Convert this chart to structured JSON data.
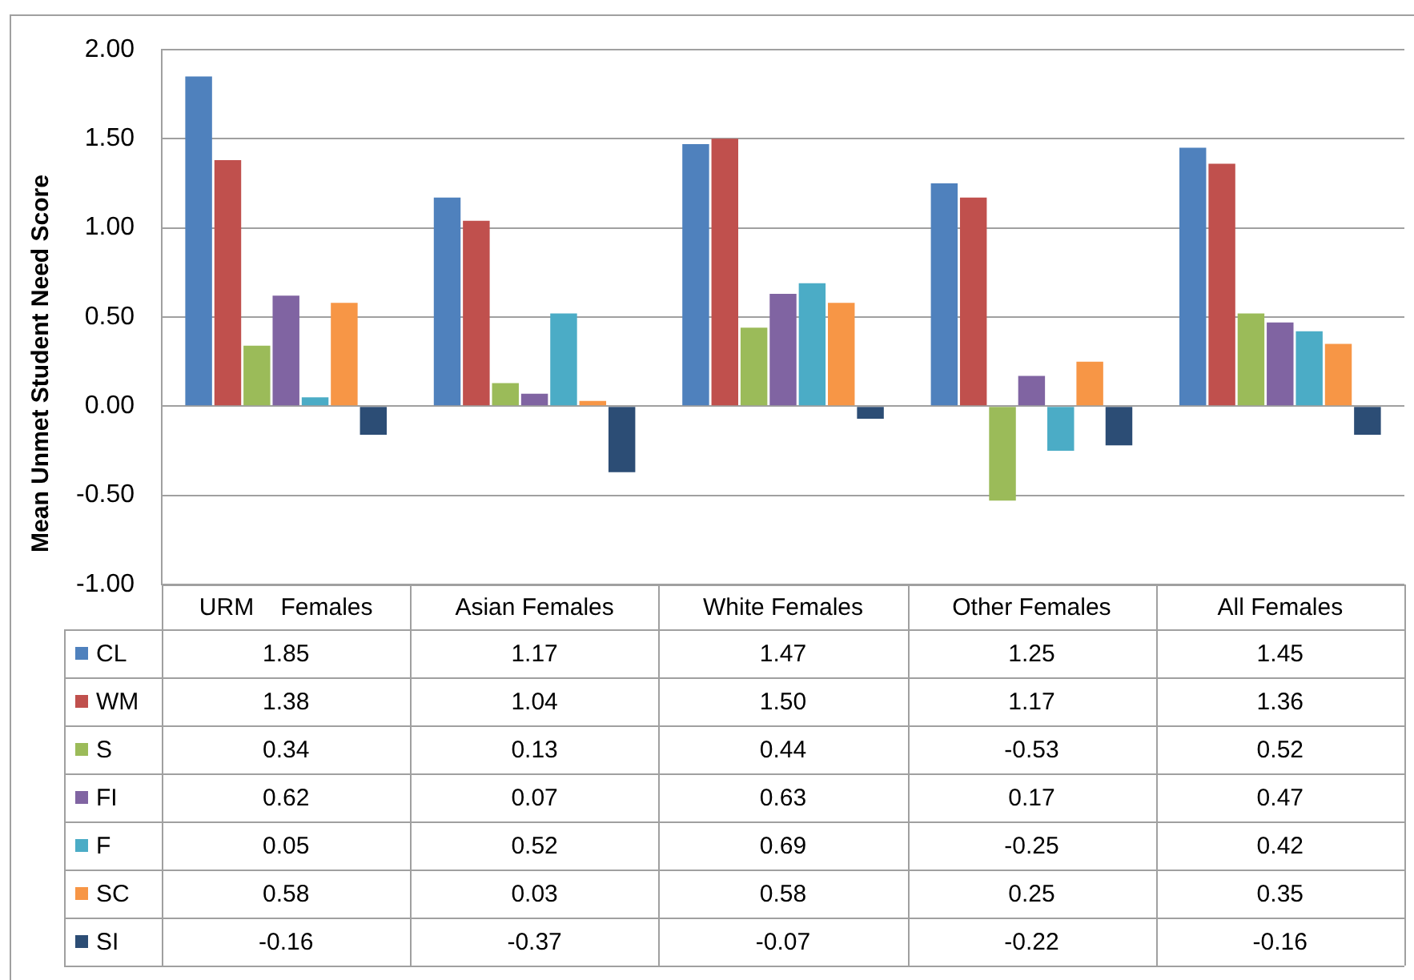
{
  "chart_data": {
    "type": "bar",
    "ylabel": "Mean Unmet Student Need Score",
    "categories": [
      "URM    Females",
      "Asian Females",
      "White Females",
      "Other Females",
      "All Females"
    ],
    "series": [
      {
        "name": "CL",
        "color": "#4f81bd",
        "values": [
          1.85,
          1.17,
          1.47,
          1.25,
          1.45
        ],
        "value_labels": [
          "1.85",
          "1.17",
          "1.47",
          "1.25",
          "1.45"
        ]
      },
      {
        "name": "WM",
        "color": "#c0504d",
        "values": [
          1.38,
          1.04,
          1.5,
          1.17,
          1.36
        ],
        "value_labels": [
          "1.38",
          "1.04",
          "1.50",
          "1.17",
          "1.36"
        ]
      },
      {
        "name": "S",
        "color": "#9bbb59",
        "values": [
          0.34,
          0.13,
          0.44,
          -0.53,
          0.52
        ],
        "value_labels": [
          "0.34",
          "0.13",
          "0.44",
          "-0.53",
          "0.52"
        ]
      },
      {
        "name": "FI",
        "color": "#8064a2",
        "values": [
          0.62,
          0.07,
          0.63,
          0.17,
          0.47
        ],
        "value_labels": [
          "0.62",
          "0.07",
          "0.63",
          "0.17",
          "0.47"
        ]
      },
      {
        "name": "F",
        "color": "#4bacc6",
        "values": [
          0.05,
          0.52,
          0.69,
          -0.25,
          0.42
        ],
        "value_labels": [
          "0.05",
          "0.52",
          "0.69",
          "-0.25",
          "0.42"
        ]
      },
      {
        "name": "SC",
        "color": "#f79646",
        "values": [
          0.58,
          0.03,
          0.58,
          0.25,
          0.35
        ],
        "value_labels": [
          "0.58",
          "0.03",
          "0.58",
          "0.25",
          "0.35"
        ]
      },
      {
        "name": "SI",
        "color": "#2c4d75",
        "values": [
          -0.16,
          -0.37,
          -0.07,
          -0.22,
          -0.16
        ],
        "value_labels": [
          "-0.16",
          "-0.37",
          "-0.07",
          "-0.22",
          "-0.16"
        ]
      }
    ],
    "ylim": [
      -1,
      2
    ],
    "yticks": [
      {
        "value": 2,
        "label": "2.00"
      },
      {
        "value": 1.5,
        "label": "1.50"
      },
      {
        "value": 1,
        "label": "1.00"
      },
      {
        "value": 0.5,
        "label": "0.50"
      },
      {
        "value": 0,
        "label": "0.00"
      },
      {
        "value": -0.5,
        "label": "-0.50"
      },
      {
        "value": -1,
        "label": "-1.00"
      }
    ],
    "grid": "y",
    "legend": "bottom"
  }
}
